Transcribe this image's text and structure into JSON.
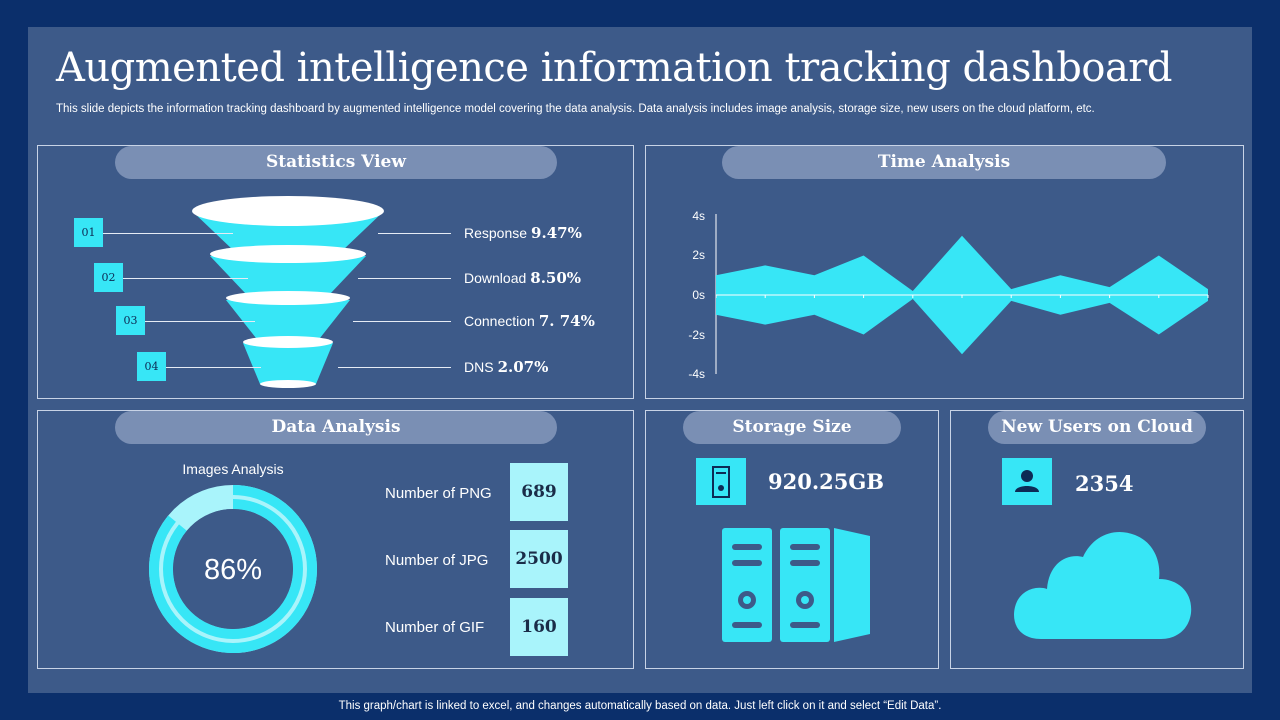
{
  "header": {
    "title": "Augmented intelligence information tracking dashboard",
    "subtitle": "This slide depicts the information tracking dashboard by augmented intelligence model covering the data analysis. Data analysis includes image analysis, storage size, new users on the cloud platform, etc."
  },
  "statistics": {
    "title": "Statistics View",
    "items": [
      {
        "num": "01",
        "label": "Response",
        "value": "9.47%"
      },
      {
        "num": "02",
        "label": "Download",
        "value": "8.50%"
      },
      {
        "num": "03",
        "label": "Connection",
        "value": "7. 74%"
      },
      {
        "num": "04",
        "label": "DNS",
        "value": "2.07%"
      }
    ]
  },
  "time_analysis": {
    "title": "Time Analysis",
    "chart_data": {
      "type": "area",
      "y_ticks": [
        "4s",
        "2s",
        "0s",
        "-2s",
        "-4s"
      ],
      "ylim": [
        -4,
        4
      ],
      "x": [
        1,
        2,
        3,
        4,
        5,
        6,
        7,
        8,
        9,
        10,
        11
      ],
      "upper": [
        1,
        1.5,
        1,
        2,
        0.2,
        3,
        0.3,
        1,
        0.4,
        2,
        0.3
      ],
      "lower": [
        -1,
        -1.5,
        -1,
        -2,
        -0.2,
        -3,
        -0.3,
        -1,
        -0.4,
        -2,
        -0.3
      ],
      "color": "#37e6f6",
      "legend": "none"
    }
  },
  "data_analysis": {
    "title": "Data Analysis",
    "donut_label": "Images Analysis",
    "donut_value": "86%",
    "donut_percent": 86,
    "rows": [
      {
        "label": "Number of PNG",
        "value": "689"
      },
      {
        "label": "Number of JPG",
        "value": "2500"
      },
      {
        "label": "Number of GIF",
        "value": "160"
      }
    ]
  },
  "storage": {
    "title": "Storage Size",
    "value": "920.25GB",
    "icon": "hard-drive-icon",
    "illustration": "server-rack-icon"
  },
  "users": {
    "title": "New Users on Cloud",
    "value": "2354",
    "icon": "user-icon",
    "illustration": "cloud-icon"
  },
  "footer": {
    "note": "This graph/chart is linked to excel,  and changes automatically based on data. Just left click on it and select “Edit Data”."
  },
  "colors": {
    "background": "#0b2f6b",
    "slide": "#3d5a89",
    "accent": "#37e6f6",
    "pill": "#7a8fb4",
    "value_box": "#a9f4fb"
  }
}
